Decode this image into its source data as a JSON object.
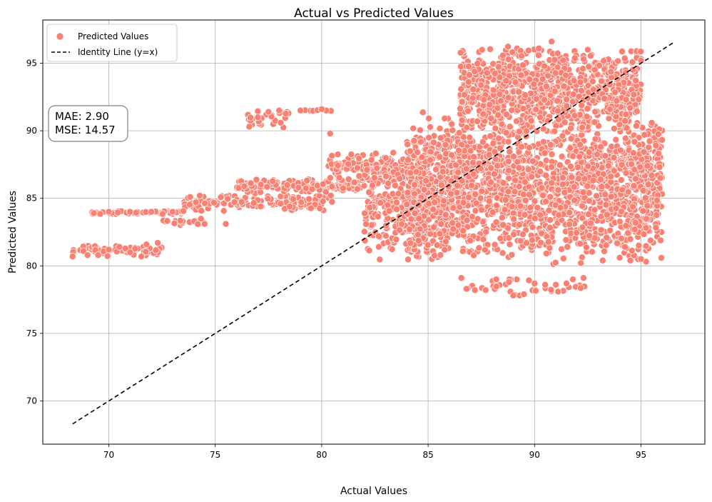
{
  "chart_data": {
    "type": "scatter",
    "title": "Actual vs Predicted Values",
    "xlabel": "Actual Values",
    "ylabel": "Predicted Values",
    "xlim": [
      66.9,
      98.0
    ],
    "ylim": [
      66.8,
      98.2
    ],
    "xticks": [
      70,
      75,
      80,
      85,
      90,
      95
    ],
    "yticks": [
      70,
      75,
      80,
      85,
      90,
      95
    ],
    "grid": true,
    "legend_position": "top-left",
    "point_color": "#fa8072",
    "point_edge_color": "#ffffff",
    "identity_line_color": "#000000",
    "series": [
      {
        "name": "Predicted Values",
        "kind": "scatter",
        "clusters": [
          {
            "x": [
              68.3,
              72.5
            ],
            "y": [
              80.6,
              81.7
            ],
            "n": 70
          },
          {
            "x": [
              69.2,
              73.5
            ],
            "y": [
              83.8,
              84.1
            ],
            "n": 60
          },
          {
            "x": [
              72.5,
              74.5
            ],
            "y": [
              83.0,
              83.5
            ],
            "n": 20
          },
          {
            "x": [
              73.5,
              80.5
            ],
            "y": [
              84.0,
              85.4
            ],
            "n": 130
          },
          {
            "x": [
              76.5,
              78.5
            ],
            "y": [
              90.2,
              91.6
            ],
            "n": 25
          },
          {
            "x": [
              79.0,
              80.5
            ],
            "y": [
              91.4,
              91.6
            ],
            "n": 10
          },
          {
            "x": [
              76.0,
              82.0
            ],
            "y": [
              85.4,
              86.5
            ],
            "n": 150
          },
          {
            "x": [
              80.3,
              84.0
            ],
            "y": [
              86.0,
              88.5
            ],
            "n": 120
          },
          {
            "x": [
              82.0,
              86.0
            ],
            "y": [
              80.2,
              88.5
            ],
            "n": 380
          },
          {
            "x": [
              84.0,
              96.0
            ],
            "y": [
              80.0,
              91.5
            ],
            "n": 1900
          },
          {
            "x": [
              86.5,
              95.0
            ],
            "y": [
              89.5,
              96.5
            ],
            "n": 900
          },
          {
            "x": [
              86.5,
              92.5
            ],
            "y": [
              77.8,
              79.2
            ],
            "n": 30
          },
          {
            "x": [
              92.0,
              95.6
            ],
            "y": [
              86.3,
              88.9
            ],
            "n": 60
          }
        ],
        "points": [
          [
            68.3,
            80.7
          ],
          [
            69.0,
            80.8
          ],
          [
            69.5,
            80.8
          ],
          [
            70.0,
            81.2
          ],
          [
            70.5,
            81.4
          ],
          [
            71.0,
            81.0
          ],
          [
            72.3,
            81.7
          ],
          [
            69.3,
            83.9
          ],
          [
            70.0,
            84.0
          ],
          [
            71.0,
            84.0
          ],
          [
            72.0,
            84.0
          ],
          [
            73.0,
            84.0
          ],
          [
            76.6,
            90.3
          ],
          [
            77.0,
            91.0
          ],
          [
            77.5,
            91.4
          ],
          [
            78.0,
            91.5
          ],
          [
            79.0,
            91.5
          ],
          [
            80.0,
            91.6
          ],
          [
            80.4,
            89.8
          ],
          [
            75.5,
            83.1
          ],
          [
            74.5,
            83.1
          ],
          [
            78.5,
            84.4
          ],
          [
            86.8,
            78.3
          ],
          [
            87.2,
            78.2
          ],
          [
            87.7,
            78.2
          ],
          [
            88.2,
            79.0
          ],
          [
            88.8,
            78.8
          ],
          [
            89.0,
            77.8
          ],
          [
            89.3,
            77.8
          ],
          [
            89.5,
            77.9
          ],
          [
            90.0,
            78.7
          ],
          [
            90.5,
            78.6
          ],
          [
            91.0,
            78.6
          ],
          [
            91.5,
            78.7
          ],
          [
            91.8,
            79.0
          ],
          [
            92.3,
            79.1
          ],
          [
            90.8,
            96.6
          ],
          [
            90.2,
            96.1
          ],
          [
            92.5,
            96.0
          ],
          [
            94.8,
            95.4
          ],
          [
            95.0,
            95.2
          ],
          [
            95.0,
            80.5
          ],
          [
            94.5,
            80.4
          ],
          [
            94.0,
            80.6
          ],
          [
            93.2,
            80.4
          ],
          [
            95.5,
            86.7
          ],
          [
            95.7,
            88.9
          ],
          [
            95.3,
            87.4
          ],
          [
            94.3,
            92.3
          ]
        ]
      },
      {
        "name": "Identity Line (y=x)",
        "kind": "line",
        "style": "dashed",
        "x": [
          68.3,
          96.6
        ],
        "y": [
          68.3,
          96.6
        ]
      }
    ],
    "annotations": [
      {
        "id": "mae",
        "text": "MAE: 2.90"
      },
      {
        "id": "mse",
        "text": "MSE: 14.57"
      }
    ]
  }
}
